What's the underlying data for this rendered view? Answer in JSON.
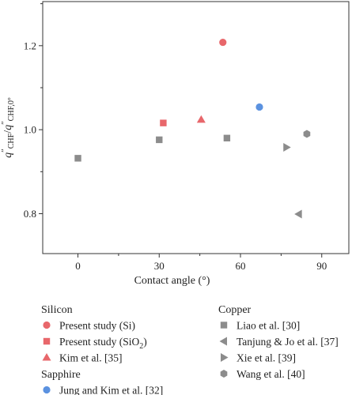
{
  "chart_data": {
    "type": "scatter",
    "xlabel": "Contact angle (°)",
    "ylabel_parts": {
      "q1": "q",
      "sup1": "″",
      "sub1": "CHF",
      "slash": "/",
      "q2": "q",
      "sup2": "″",
      "sub2": "CHF,0°"
    },
    "xlim": [
      -13,
      100
    ],
    "ylim": [
      0.705,
      1.305
    ],
    "xticks": [
      0,
      30,
      60,
      90
    ],
    "yticks": [
      0.8,
      1.0,
      1.2
    ],
    "xtick_labels": [
      "0",
      "30",
      "60",
      "90"
    ],
    "ytick_labels": [
      "0.8",
      "1.0",
      "1.2"
    ],
    "grid": false,
    "legend_placement": "below plot",
    "legend_groups": [
      {
        "title": "Silicon",
        "column": "left",
        "members": [
          "present-si",
          "present-sio2",
          "kim"
        ]
      },
      {
        "title": "Sapphire",
        "column": "left",
        "members": [
          "jung"
        ]
      },
      {
        "title": "Copper",
        "column": "right",
        "members": [
          "liao",
          "tanjung",
          "xie",
          "wang"
        ]
      }
    ],
    "series": [
      {
        "id": "present-si",
        "name": "Present study (Si)",
        "label_parts": [
          "Present study (Si)"
        ],
        "marker": "circle",
        "color": "#e8676b",
        "points": [
          {
            "x": 53.5,
            "y": 1.208
          }
        ]
      },
      {
        "id": "present-sio2",
        "name": "Present study (SiO2)",
        "label_parts": [
          "Present study (SiO",
          "2",
          ")"
        ],
        "marker": "square",
        "color": "#e8676b",
        "points": [
          {
            "x": 31.5,
            "y": 1.016
          }
        ]
      },
      {
        "id": "kim",
        "name": "Kim et al. [35]",
        "label_parts": [
          "Kim et al. [35]"
        ],
        "marker": "triangle-up",
        "color": "#e8676b",
        "points": [
          {
            "x": 45.5,
            "y": 1.024
          }
        ]
      },
      {
        "id": "jung",
        "name": "Jung and Kim et al. [32]",
        "label_parts": [
          "Jung and Kim et al. [32]"
        ],
        "marker": "circle",
        "color": "#5b92e0",
        "points": [
          {
            "x": 67,
            "y": 1.054
          }
        ]
      },
      {
        "id": "liao",
        "name": "Liao et al. [30]",
        "label_parts": [
          "Liao et al. [30]"
        ],
        "marker": "square",
        "color": "#8c8c8c",
        "points": [
          {
            "x": 0,
            "y": 0.932
          },
          {
            "x": 30,
            "y": 0.976
          },
          {
            "x": 55,
            "y": 0.98
          }
        ]
      },
      {
        "id": "tanjung",
        "name": "Tanjung & Jo et al. [37]",
        "label_parts": [
          "Tanjung & Jo et al. [37]"
        ],
        "marker": "triangle-left",
        "color": "#8c8c8c",
        "points": [
          {
            "x": 81.5,
            "y": 0.799
          }
        ]
      },
      {
        "id": "xie",
        "name": "Xie et al. [39]",
        "label_parts": [
          "Xie et al. [39]"
        ],
        "marker": "triangle-right",
        "color": "#8c8c8c",
        "points": [
          {
            "x": 77,
            "y": 0.958
          }
        ]
      },
      {
        "id": "wang",
        "name": "Wang et al. [40]",
        "label_parts": [
          "Wang et al. [40]"
        ],
        "marker": "hexagon",
        "color": "#8c8c8c",
        "points": [
          {
            "x": 84.5,
            "y": 0.99
          }
        ]
      }
    ]
  }
}
